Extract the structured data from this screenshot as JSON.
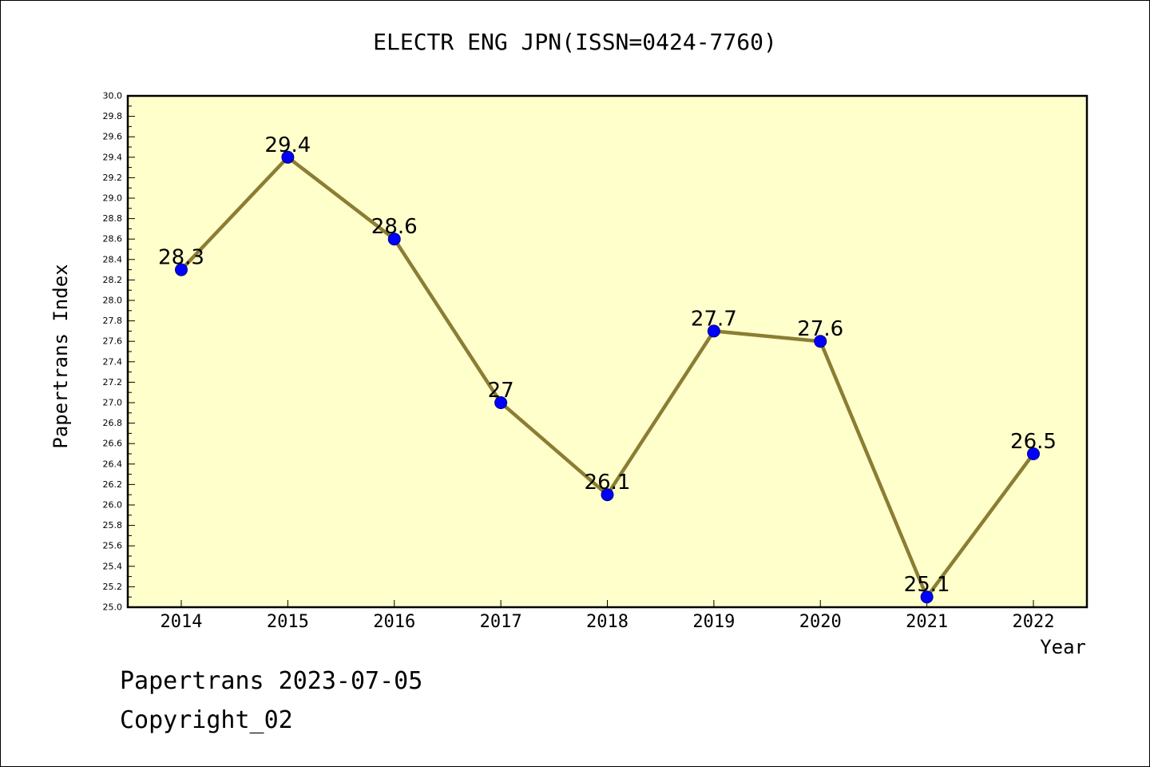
{
  "chart_data": {
    "type": "line",
    "title": "ELECTR ENG JPN(ISSN=0424-7760)",
    "xlabel": "Year",
    "ylabel": "Papertrans Index",
    "categories": [
      "2014",
      "2015",
      "2016",
      "2017",
      "2018",
      "2019",
      "2020",
      "2021",
      "2022"
    ],
    "values": [
      28.3,
      29.4,
      28.6,
      27.0,
      26.1,
      27.7,
      27.6,
      25.1,
      26.5
    ],
    "data_labels": [
      "28.3",
      "29.4",
      "28.6",
      "27",
      "26.1",
      "27.7",
      "27.6",
      "25.1",
      "26.5"
    ],
    "ylim": [
      25.0,
      30.0
    ],
    "ytick_step": 0.2,
    "y_ticks": [
      "25.0",
      "25.2",
      "25.4",
      "25.6",
      "25.8",
      "26.0",
      "26.2",
      "26.4",
      "26.6",
      "26.8",
      "27.0",
      "27.2",
      "27.4",
      "27.6",
      "27.8",
      "28.0",
      "28.2",
      "28.4",
      "28.6",
      "28.8",
      "29.0",
      "29.2",
      "29.4",
      "29.6",
      "29.8",
      "30.0"
    ],
    "grid": false,
    "colors": {
      "plot_background": "#ffffcc",
      "line": "#8b7d33",
      "marker": "#0000ff",
      "marker_edge": "#000080"
    }
  },
  "footer": {
    "line1": "Papertrans 2023-07-05",
    "line2": "Copyright_02"
  }
}
